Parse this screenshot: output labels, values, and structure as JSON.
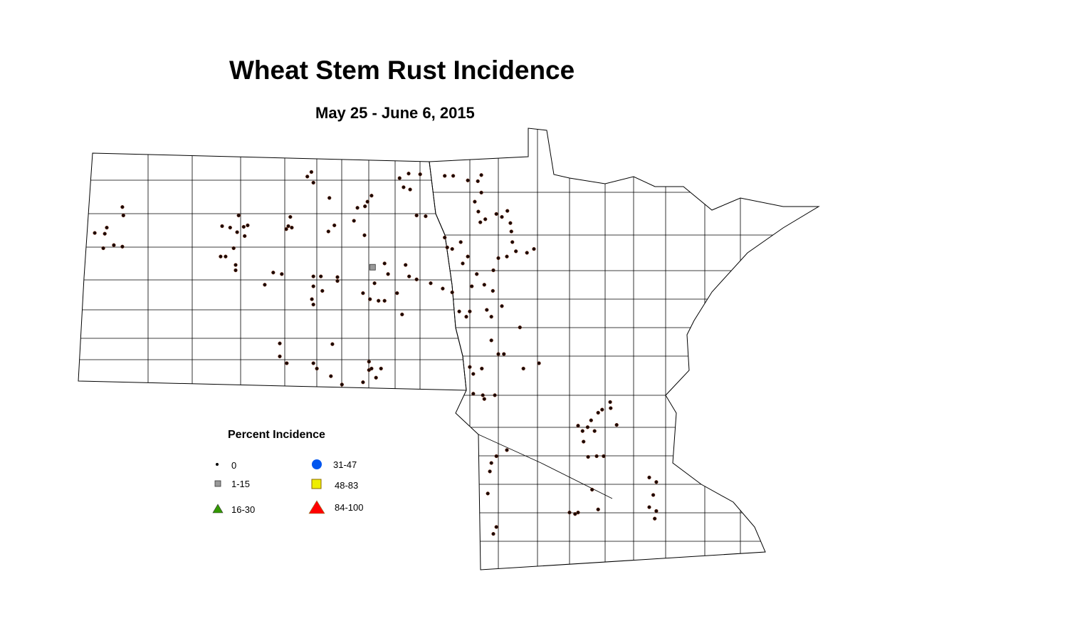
{
  "title": "Wheat Stem Rust Incidence",
  "subtitle": "May 25 - June 6, 2015",
  "legend": {
    "title": "Percent Incidence",
    "classes": [
      {
        "label": "0",
        "symbol": "dot",
        "color": "#000000"
      },
      {
        "label": "1-15",
        "symbol": "square",
        "color": "#999999"
      },
      {
        "label": "16-30",
        "symbol": "triangle",
        "color": "#339900"
      },
      {
        "label": "31-47",
        "symbol": "circle",
        "color": "#0055ee"
      },
      {
        "label": "48-83",
        "symbol": "square",
        "color": "#eeee00"
      },
      {
        "label": "84-100",
        "symbol": "triangle",
        "color": "#ff0000"
      }
    ]
  },
  "map_data": {
    "region": "North Dakota and Minnesota county map",
    "observations_class_0": [
      [
        -103.2,
        48.32
      ],
      [
        -103.18,
        48.21
      ],
      [
        -103.51,
        48.05
      ],
      [
        -103.55,
        47.97
      ],
      [
        -103.75,
        47.98
      ],
      [
        -103.58,
        47.78
      ],
      [
        -103.37,
        47.82
      ],
      [
        -103.2,
        47.8
      ],
      [
        -101.21,
        48.07
      ],
      [
        -101.05,
        48.05
      ],
      [
        -100.91,
        47.99
      ],
      [
        -100.78,
        48.06
      ],
      [
        -100.7,
        48.08
      ],
      [
        -100.76,
        47.94
      ],
      [
        -100.88,
        48.21
      ],
      [
        -101.24,
        47.67
      ],
      [
        -101.14,
        47.67
      ],
      [
        -100.98,
        47.78
      ],
      [
        -100.94,
        47.56
      ],
      [
        -100.94,
        47.49
      ],
      [
        -99.51,
        48.72
      ],
      [
        -99.43,
        48.78
      ],
      [
        -99.39,
        48.64
      ],
      [
        -99.07,
        48.44
      ],
      [
        -99.85,
        48.19
      ],
      [
        -99.89,
        48.07
      ],
      [
        -99.82,
        48.05
      ],
      [
        -99.93,
        48.03
      ],
      [
        -99.09,
        48.0
      ],
      [
        -98.97,
        48.08
      ],
      [
        -100.19,
        47.46
      ],
      [
        -100.02,
        47.44
      ],
      [
        -100.36,
        47.3
      ],
      [
        -99.39,
        47.41
      ],
      [
        -99.24,
        47.41
      ],
      [
        -98.91,
        47.4
      ],
      [
        -98.91,
        47.35
      ],
      [
        -99.39,
        47.28
      ],
      [
        -99.42,
        47.11
      ],
      [
        -99.21,
        47.22
      ],
      [
        -99.39,
        47.04
      ],
      [
        -98.23,
        48.47
      ],
      [
        -98.31,
        48.39
      ],
      [
        -98.36,
        48.33
      ],
      [
        -98.51,
        48.31
      ],
      [
        -98.58,
        48.14
      ],
      [
        -98.37,
        47.95
      ],
      [
        -97.67,
        48.7
      ],
      [
        -97.49,
        48.76
      ],
      [
        -97.59,
        48.58
      ],
      [
        -97.46,
        48.55
      ],
      [
        -97.26,
        48.75
      ],
      [
        -97.33,
        48.21
      ],
      [
        -97.15,
        48.2
      ],
      [
        -96.77,
        48.73
      ],
      [
        -96.6,
        48.73
      ],
      [
        -96.31,
        48.67
      ],
      [
        -96.11,
        48.66
      ],
      [
        -96.04,
        48.74
      ],
      [
        -96.04,
        48.51
      ],
      [
        -96.17,
        48.39
      ],
      [
        -96.1,
        48.26
      ],
      [
        -96.06,
        48.12
      ],
      [
        -95.74,
        48.23
      ],
      [
        -95.63,
        48.19
      ],
      [
        -95.52,
        48.27
      ],
      [
        -95.46,
        48.11
      ],
      [
        -95.44,
        48.0
      ],
      [
        -95.96,
        48.16
      ],
      [
        -96.77,
        47.92
      ],
      [
        -96.72,
        47.79
      ],
      [
        -96.62,
        47.77
      ],
      [
        -96.45,
        47.86
      ],
      [
        -96.31,
        47.67
      ],
      [
        -96.41,
        47.58
      ],
      [
        -95.42,
        47.86
      ],
      [
        -95.13,
        47.72
      ],
      [
        -94.99,
        47.77
      ],
      [
        -95.35,
        47.74
      ],
      [
        -95.53,
        47.67
      ],
      [
        -95.7,
        47.65
      ],
      [
        -95.8,
        47.49
      ],
      [
        -96.13,
        47.44
      ],
      [
        -96.23,
        47.28
      ],
      [
        -95.98,
        47.3
      ],
      [
        -95.81,
        47.22
      ],
      [
        -95.93,
        46.97
      ],
      [
        -95.63,
        47.02
      ],
      [
        -95.84,
        46.88
      ],
      [
        -96.27,
        46.95
      ],
      [
        -96.48,
        46.95
      ],
      [
        -96.34,
        46.88
      ],
      [
        -95.27,
        46.74
      ],
      [
        -97.97,
        47.58
      ],
      [
        -97.9,
        47.44
      ],
      [
        -97.55,
        47.56
      ],
      [
        -97.48,
        47.41
      ],
      [
        -97.33,
        47.37
      ],
      [
        -97.05,
        47.32
      ],
      [
        -96.81,
        47.25
      ],
      [
        -96.62,
        47.2
      ],
      [
        -98.4,
        47.19
      ],
      [
        -98.26,
        47.11
      ],
      [
        -98.17,
        47.32
      ],
      [
        -98.09,
        47.09
      ],
      [
        -97.97,
        47.09
      ],
      [
        -97.72,
        47.19
      ],
      [
        -97.62,
        46.91
      ],
      [
        -100.06,
        46.53
      ],
      [
        -100.06,
        46.36
      ],
      [
        -99.92,
        46.27
      ],
      [
        -99.39,
        46.27
      ],
      [
        -99.32,
        46.2
      ],
      [
        -99.04,
        46.1
      ],
      [
        -99.01,
        46.52
      ],
      [
        -98.82,
        45.99
      ],
      [
        -98.4,
        46.02
      ],
      [
        -98.28,
        46.18
      ],
      [
        -98.23,
        46.2
      ],
      [
        -98.14,
        46.08
      ],
      [
        -98.04,
        46.2
      ],
      [
        -98.28,
        46.29
      ],
      [
        -96.27,
        46.22
      ],
      [
        -96.2,
        46.13
      ],
      [
        -96.03,
        46.2
      ],
      [
        -95.84,
        46.57
      ],
      [
        -95.7,
        46.39
      ],
      [
        -95.59,
        46.39
      ],
      [
        -95.2,
        46.2
      ],
      [
        -94.89,
        46.27
      ],
      [
        -96.2,
        45.87
      ],
      [
        -96.01,
        45.85
      ],
      [
        -95.98,
        45.8
      ],
      [
        -95.77,
        45.85
      ],
      [
        -95.84,
        44.96
      ],
      [
        -95.74,
        45.05
      ],
      [
        -95.53,
        45.13
      ],
      [
        -95.87,
        44.85
      ],
      [
        -95.91,
        44.56
      ],
      [
        -95.74,
        44.12
      ],
      [
        -95.8,
        44.03
      ],
      [
        -94.11,
        45.45
      ],
      [
        -94.02,
        45.38
      ],
      [
        -93.85,
        45.52
      ],
      [
        -93.71,
        45.62
      ],
      [
        -93.63,
        45.66
      ],
      [
        -93.47,
        45.76
      ],
      [
        -93.46,
        45.68
      ],
      [
        -93.92,
        45.43
      ],
      [
        -93.78,
        45.38
      ],
      [
        -94.0,
        45.24
      ],
      [
        -93.91,
        45.04
      ],
      [
        -93.74,
        45.05
      ],
      [
        -93.6,
        45.05
      ],
      [
        -93.34,
        45.46
      ],
      [
        -93.83,
        44.61
      ],
      [
        -93.71,
        44.35
      ],
      [
        -94.28,
        44.31
      ],
      [
        -94.17,
        44.29
      ],
      [
        -94.11,
        44.31
      ],
      [
        -92.69,
        44.77
      ],
      [
        -92.55,
        44.71
      ],
      [
        -92.61,
        44.54
      ],
      [
        -92.69,
        44.38
      ],
      [
        -92.55,
        44.33
      ],
      [
        -92.58,
        44.23
      ]
    ],
    "observations_class_1_15": [
      [
        -98.21,
        47.53
      ]
    ]
  }
}
